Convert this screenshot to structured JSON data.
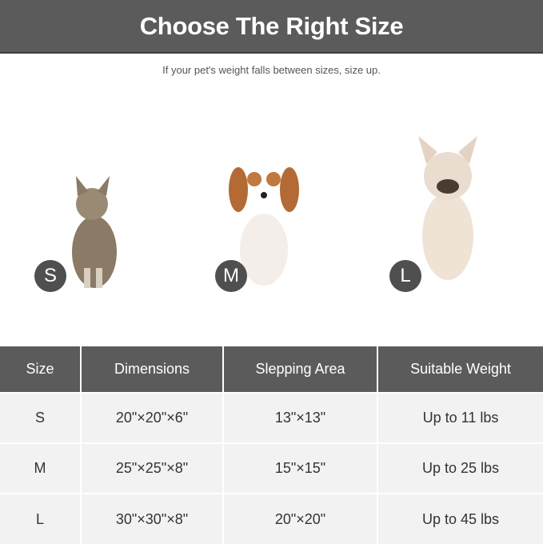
{
  "title": "Choose The Right Size",
  "subtitle": "If your pet's weight falls between sizes, size up.",
  "pets": [
    {
      "badge": "S",
      "animal": "cat"
    },
    {
      "badge": "M",
      "animal": "dog"
    },
    {
      "badge": "L",
      "animal": "bulldog"
    }
  ],
  "table": {
    "headers": [
      "Size",
      "Dimensions",
      "Slepping Area",
      "Suitable Weight"
    ],
    "rows": [
      [
        "S",
        "20\"×20\"×6\"",
        "13\"×13\"",
        "Up to 11 lbs"
      ],
      [
        "M",
        "25\"×25\"×8\"",
        "15\"×15\"",
        "Up to 25 lbs"
      ],
      [
        "L",
        "30\"×30\"×8\"",
        "20\"×20\"",
        "Up to 45 lbs"
      ]
    ]
  },
  "colors": {
    "header_bg": "#5b5b5b",
    "row_bg": "#f2f2f2",
    "badge_bg": "#4f4f4f"
  }
}
